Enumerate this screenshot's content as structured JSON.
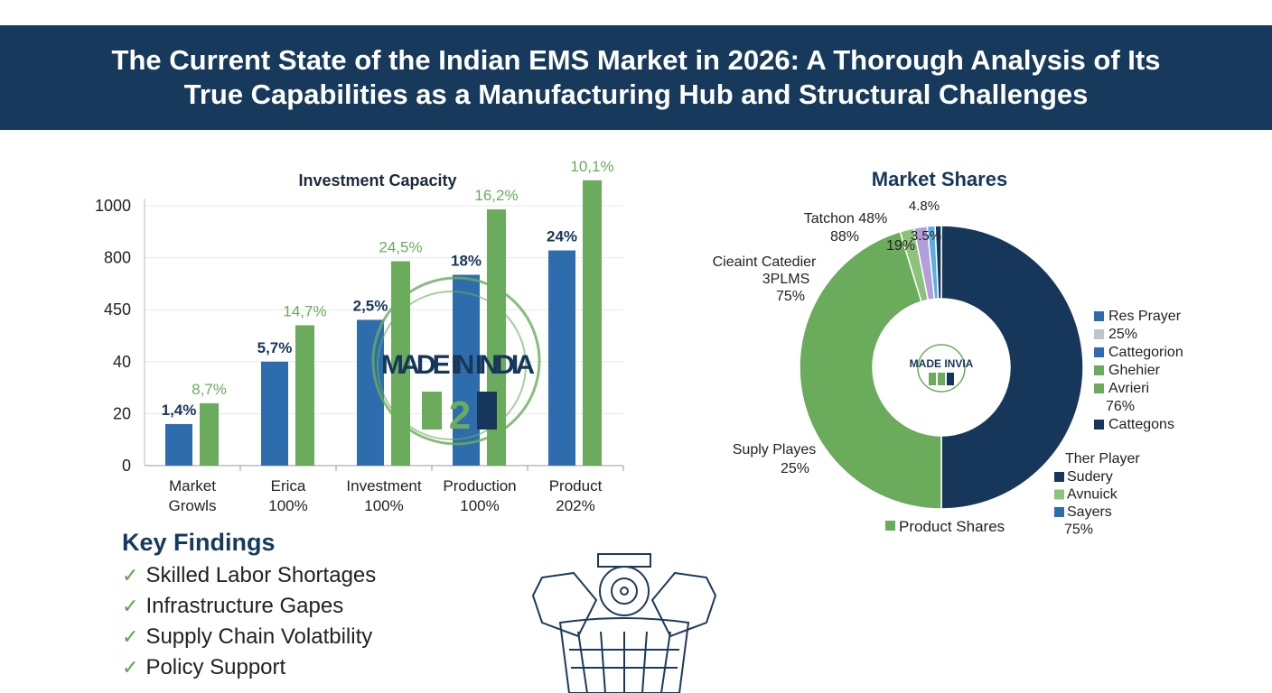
{
  "header": {
    "title": "The Current State of the Indian EMS Market in 2026: A Thorough Analysis of Its\nTrue Capabilities as a Manufacturing Hub and Structural Challenges"
  },
  "colors": {
    "header": "#173a5c",
    "blue": "#2e6dad",
    "green": "#6aab5c",
    "navy": "#17375a",
    "light_green": "#8cc27a",
    "lavender": "#b39ddb",
    "light_blue": "#5bb0e0"
  },
  "chart_data": [
    {
      "type": "bar",
      "title": "Investment Capacity",
      "xlabel": "",
      "ylabel": "",
      "y_ticks": [
        "0",
        "20",
        "40",
        "450",
        "800",
        "1000"
      ],
      "grid": true,
      "categories": [
        [
          "Market",
          "Growls"
        ],
        [
          "Erica",
          "100%"
        ],
        [
          "Investment",
          "100%"
        ],
        [
          "Production",
          "100%"
        ],
        [
          "Product",
          "202%"
        ]
      ],
      "series": [
        {
          "values": [
            16,
            40,
            370,
            685,
            828
          ],
          "labels": [
            "1,4%",
            "5,7%",
            "2,5%",
            "18%",
            "24%"
          ]
        },
        {
          "values": [
            24,
            327,
            776,
            986,
            1098
          ],
          "labels": [
            "8,7%",
            "14,7%",
            "24,5%",
            "16,2%",
            "10,1%"
          ]
        }
      ],
      "watermark": "MADE IN INDIA"
    },
    {
      "type": "pie",
      "title": "Market Shares",
      "donut": true,
      "slices": [
        {
          "value": 50,
          "color": "#17375a"
        },
        {
          "value": 45.3,
          "color": "#6aab5c"
        },
        {
          "value": 1.6,
          "color": "#8cc27a"
        },
        {
          "value": 1.5,
          "color": "#b39ddb"
        },
        {
          "value": 0.9,
          "color": "#5bb0e0"
        },
        {
          "value": 0.7,
          "color": "#17375a"
        }
      ],
      "annotations": [
        {
          "text": "Tatchon 48%"
        },
        {
          "text": "88%"
        },
        {
          "text": "4.8%"
        },
        {
          "text": "19%"
        },
        {
          "text": "3.5%"
        },
        {
          "text": "Cieaint Catedier"
        },
        {
          "text": "3PLMS"
        },
        {
          "text": "75%"
        },
        {
          "text": "Suply Playes"
        },
        {
          "text": "25%"
        }
      ],
      "legend_right": [
        {
          "text": "Res Prayer",
          "color": "#2e6dad"
        },
        {
          "text": "25%",
          "color": "#c0c4cc"
        },
        {
          "text": "Cattegorion",
          "color": "#2e6dad"
        },
        {
          "text": "Ghehier",
          "color": "#6aab5c"
        },
        {
          "text": "Avrieri",
          "color": "#6aab5c"
        },
        {
          "text": "76%",
          "color": ""
        },
        {
          "text": "Cattegons",
          "color": "#17375a"
        }
      ],
      "legend_bottom_title": "Ther Player",
      "legend_bottom": [
        {
          "text": "Sudery",
          "color": "#17375a"
        },
        {
          "text": "Avnuick",
          "color": "#8cc27a"
        },
        {
          "text": "Sayers",
          "color": "#2e6dad"
        },
        {
          "text": "75%",
          "color": ""
        }
      ],
      "legend_product": "Product Shares",
      "center_badge": "MADE INVIA"
    }
  ],
  "findings": {
    "title": "Key Findings",
    "items": [
      "Skilled Labor Shortages",
      "Infrastructure Gapes",
      "Supply Chain Volatbility",
      "Policy Support"
    ]
  }
}
